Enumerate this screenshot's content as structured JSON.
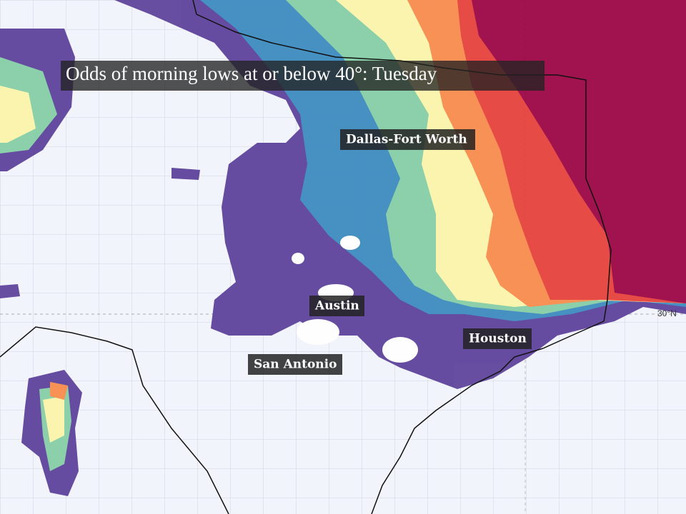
{
  "title": "Odds of morning lows at or below 40°: Tuesday",
  "cities": [
    "Dallas-Fort Worth",
    "Austin",
    "Houston",
    "San Antonio"
  ],
  "latitude_label": "30°N"
}
